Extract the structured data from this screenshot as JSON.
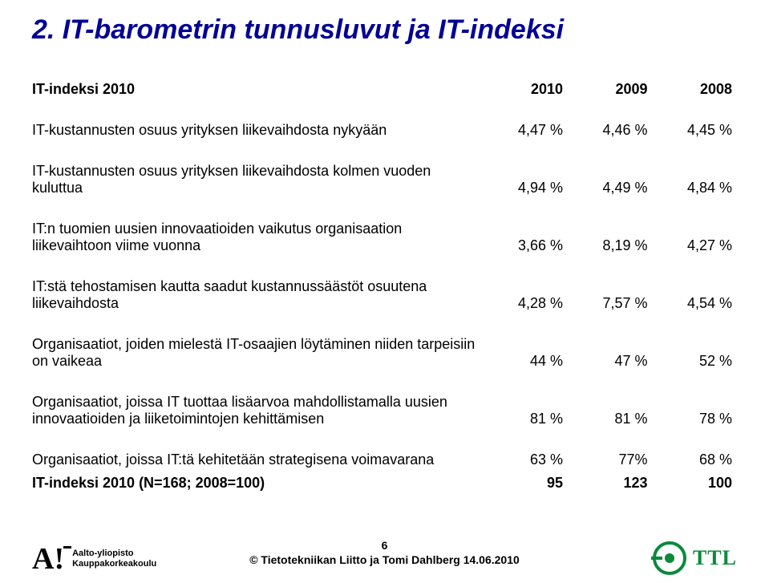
{
  "title": "2. IT-barometrin tunnusluvut ja IT-indeksi",
  "colors": {
    "title": "#010195",
    "text": "#000000",
    "background": "#ffffff",
    "ttl_green": "#0a8a3a"
  },
  "fonts": {
    "title_fontsize": 34,
    "body_fontsize": 18,
    "footer_fontsize": 14
  },
  "table": {
    "header": {
      "label": "IT-indeksi 2010",
      "c2010": "2010",
      "c2009": "2009",
      "c2008": "2008"
    },
    "rows": [
      {
        "label": "IT-kustannusten osuus yrityksen liikevaihdosta nykyään",
        "c2010": "4,47 %",
        "c2009": "4,46 %",
        "c2008": "4,45 %"
      },
      {
        "label": "IT-kustannusten osuus yrityksen liikevaihdosta kolmen vuoden kuluttua",
        "c2010": "4,94 %",
        "c2009": "4,49 %",
        "c2008": "4,84 %"
      },
      {
        "label": "IT:n tuomien uusien innovaatioiden vaikutus organisaation liikevaihtoon viime vuonna",
        "c2010": "3,66 %",
        "c2009": "8,19 %",
        "c2008": "4,27 %"
      },
      {
        "label": "IT:stä tehostamisen kautta saadut kustannussäästöt osuutena liikevaihdosta",
        "c2010": "4,28 %",
        "c2009": "7,57 %",
        "c2008": "4,54 %"
      },
      {
        "label": "Organisaatiot, joiden mielestä IT-osaajien löytäminen niiden tarpeisiin on vaikeaa",
        "c2010": "44 %",
        "c2009": "47 %",
        "c2008": "52 %"
      },
      {
        "label": "Organisaatiot, joissa IT tuottaa lisäarvoa mahdollistamalla uusien innovaatioiden ja liiketoimintojen kehittämisen",
        "c2010": "81 %",
        "c2009": "81 %",
        "c2008": "78 %"
      },
      {
        "label": "Organisaatiot, joissa IT:tä kehitetään strategisena voimavarana",
        "c2010": "63 %",
        "c2009": "77%",
        "c2008": "68 %"
      }
    ],
    "index_row": {
      "label": "IT-indeksi 2010 (N=168; 2008=100)",
      "c2010": "95",
      "c2009": "123",
      "c2008": "100"
    }
  },
  "footer": {
    "page_number": "6",
    "copyright": "© Tietotekniikan Liitto ja Tomi Dahlberg 14.06.2010"
  },
  "logo_left": {
    "mark": "A!",
    "line1": "Aalto-yliopisto",
    "line2": "Kauppakorkeakoulu"
  },
  "logo_right": {
    "text": "TTL"
  }
}
